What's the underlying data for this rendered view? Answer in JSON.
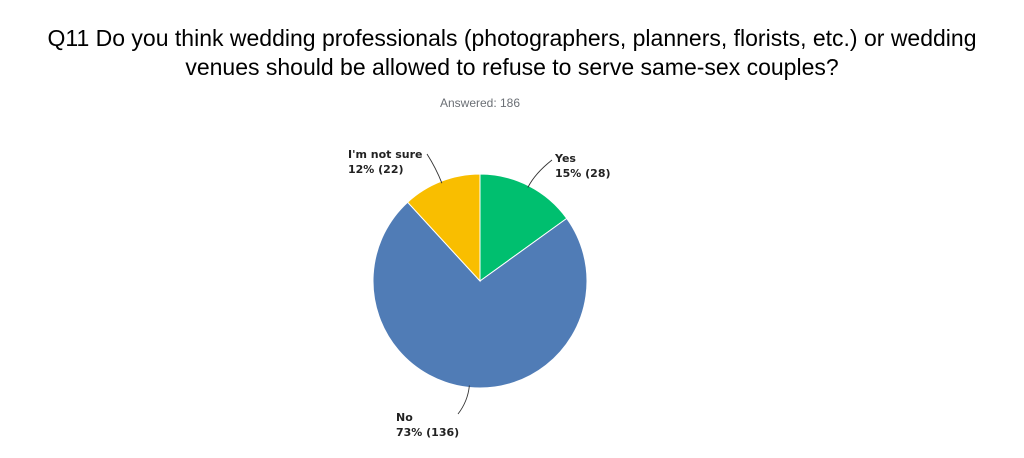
{
  "title": {
    "line1": "Q11 Do you think wedding professionals (photographers, planners, florists, etc.) or wedding",
    "line2": "venues should be allowed to refuse to serve same-sex couples?"
  },
  "answered": "Answered: 186",
  "chart_data": {
    "type": "pie",
    "title": "Q11 Do you think wedding professionals (photographers, planners, florists, etc.) or wedding venues should be allowed to refuse to serve same-sex couples?",
    "subtitle": "Answered: 186",
    "total": 186,
    "slices": [
      {
        "label": "Yes",
        "percent": 15,
        "count": 28,
        "display": "15% (28)",
        "color": "#00bf6f"
      },
      {
        "label": "No",
        "percent": 73,
        "count": 136,
        "display": "73% (136)",
        "color": "#507cb6"
      },
      {
        "label": "I'm not sure",
        "percent": 12,
        "count": 22,
        "display": "12% (22)",
        "color": "#f9be00"
      }
    ]
  }
}
